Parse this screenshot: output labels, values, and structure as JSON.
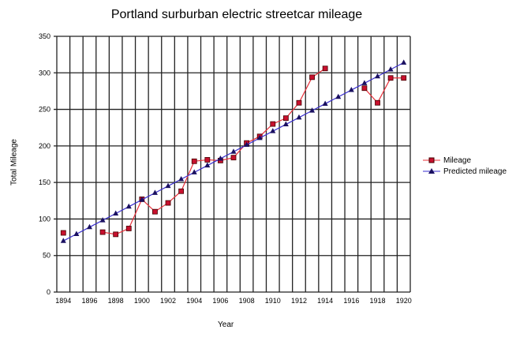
{
  "chart_data": {
    "type": "line",
    "title": "Portland surburban electric streetcar mileage",
    "xlabel": "Year",
    "ylabel": "Total Mileage",
    "ylim": [
      0,
      350
    ],
    "yticks": [
      0,
      50,
      100,
      150,
      200,
      250,
      300,
      350
    ],
    "xticks": [
      1894,
      1896,
      1898,
      1900,
      1902,
      1904,
      1906,
      1908,
      1910,
      1912,
      1914,
      1916,
      1918,
      1920
    ],
    "x": [
      1894,
      1895,
      1896,
      1897,
      1898,
      1899,
      1900,
      1901,
      1902,
      1903,
      1904,
      1905,
      1906,
      1907,
      1908,
      1909,
      1910,
      1911,
      1912,
      1913,
      1914,
      1915,
      1916,
      1917,
      1918,
      1919,
      1920
    ],
    "grid": true,
    "legend": "right",
    "series": [
      {
        "name": "Mileage",
        "color": "#e8303a",
        "marker": "square",
        "values": [
          81,
          null,
          null,
          82,
          79,
          87,
          127,
          110,
          122,
          138,
          179,
          181,
          180,
          184,
          204,
          213,
          230,
          238,
          259,
          294,
          306,
          null,
          null,
          279,
          259,
          293,
          293
        ]
      },
      {
        "name": "Predicted mileage",
        "color": "#3a2fd0",
        "marker": "triangle",
        "values": [
          70,
          79.4,
          88.8,
          98.2,
          107.5,
          116.9,
          126.3,
          135.7,
          145.1,
          154.5,
          163.8,
          173.2,
          182.6,
          192,
          201.4,
          210.8,
          220.2,
          229.5,
          238.9,
          248.3,
          257.7,
          267.1,
          276.5,
          285.8,
          295.2,
          304.6,
          314
        ]
      }
    ]
  }
}
